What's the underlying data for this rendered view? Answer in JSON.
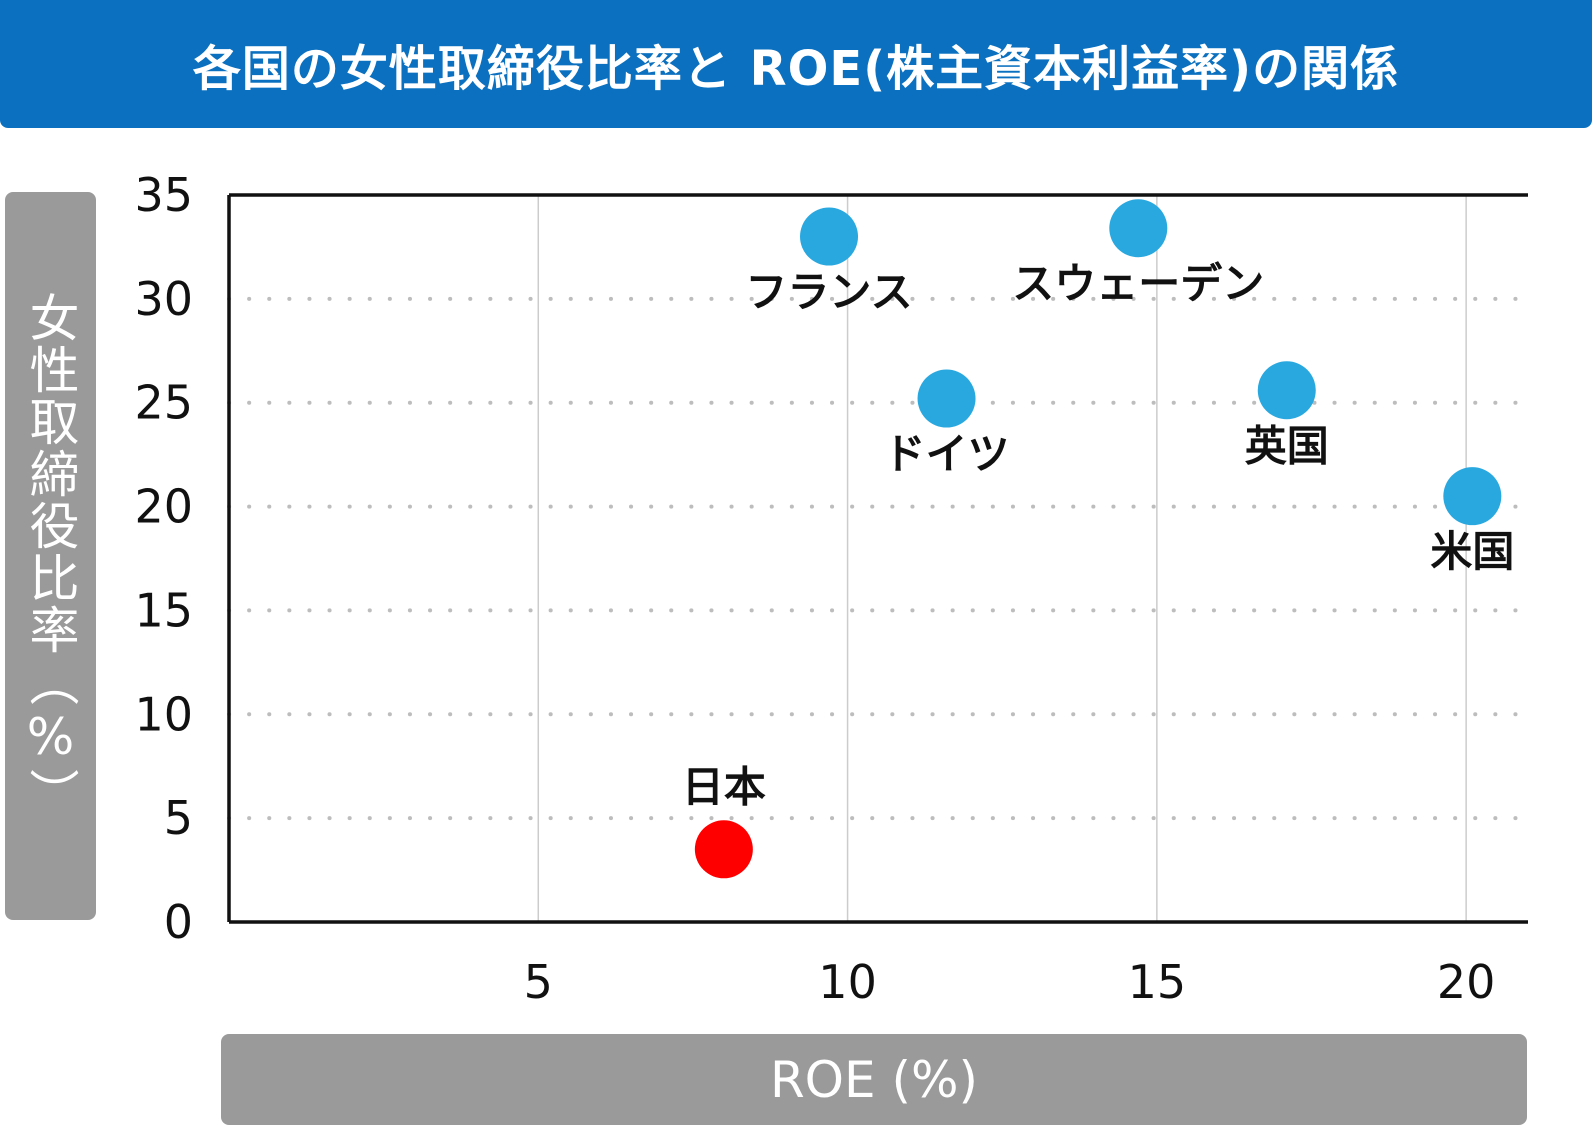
{
  "title": "各国の女性取締役比率と ROE(株主資本利益率)の関係",
  "chart_data": {
    "type": "scatter",
    "title": "各国の女性取締役比率と ROE(株主資本利益率)の関係",
    "xlabel": "ROE (%)",
    "ylabel": "女性取締役比率（%）",
    "xlim": [
      0,
      21
    ],
    "ylim": [
      0,
      35
    ],
    "x_ticks": [
      5,
      10,
      15,
      20
    ],
    "y_ticks": [
      0,
      5,
      10,
      15,
      20,
      25,
      30,
      35
    ],
    "grid": "x-solid, y-dotted",
    "points": [
      {
        "label": "日本",
        "x": 8.0,
        "y": 3.5,
        "color": "#ff0000"
      },
      {
        "label": "フランス",
        "x": 9.7,
        "y": 33.0,
        "color": "#29a8e0"
      },
      {
        "label": "スウェーデン",
        "x": 14.7,
        "y": 33.4,
        "color": "#29a8e0"
      },
      {
        "label": "ドイツ",
        "x": 11.6,
        "y": 25.2,
        "color": "#29a8e0"
      },
      {
        "label": "英国",
        "x": 17.1,
        "y": 25.6,
        "color": "#29a8e0"
      },
      {
        "label": "米国",
        "x": 20.1,
        "y": 20.5,
        "color": "#29a8e0"
      }
    ]
  }
}
